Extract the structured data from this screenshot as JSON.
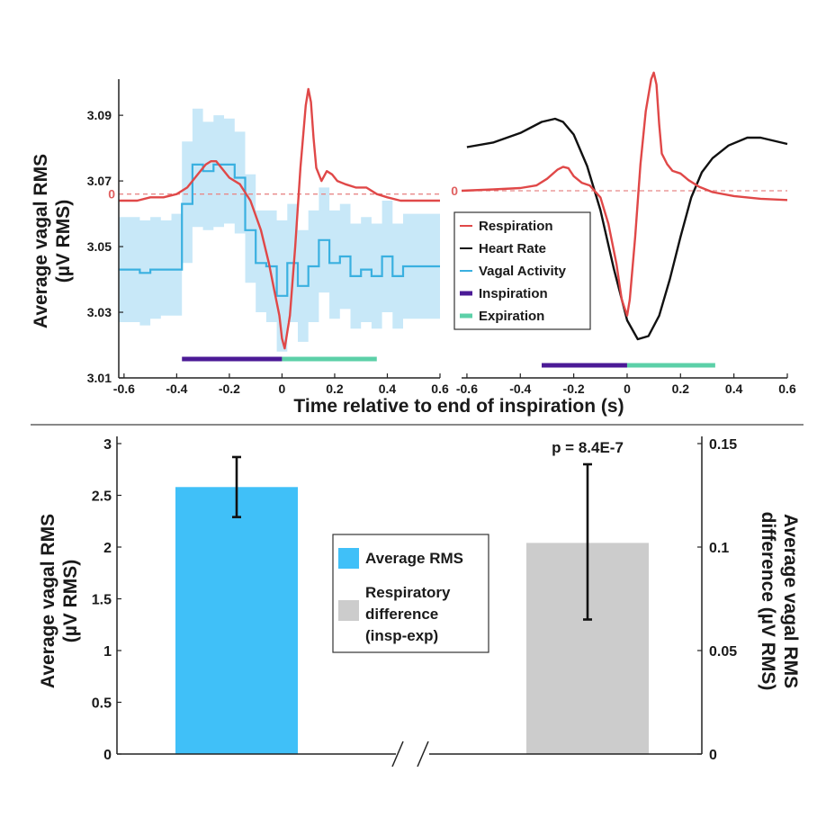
{
  "chart_data": [
    {
      "type": "line",
      "panel": "left",
      "ylabel_lines": [
        "Average vagal RMS",
        "(µV RMS)"
      ],
      "xlabel": "Time relative to end of inspiration (s)",
      "xlim": [
        -0.62,
        0.6
      ],
      "ylim": [
        3.01,
        3.101
      ],
      "yticks": [
        3.01,
        3.03,
        3.05,
        3.07,
        3.09
      ],
      "ytick_labels": [
        "3.01",
        "3.03",
        "3.05",
        "3.07",
        "3.09"
      ],
      "xticks": [
        -0.6,
        -0.4,
        -0.2,
        0,
        0.2,
        0.4,
        0.6
      ],
      "xtick_labels": [
        "-0.6",
        "-0.4",
        "-0.2",
        "0",
        "0.2",
        "0.4",
        "0.6"
      ],
      "zero_label": "0",
      "respiration_zero_level": 3.066,
      "colors": {
        "respiration": "#e04848",
        "vagal": "#3ab0e0",
        "band": "#c8e8f8",
        "inspiration": "#4b1a96",
        "expiration": "#5cd0a8"
      },
      "vagal_step": {
        "x": [
          -0.62,
          -0.58,
          -0.54,
          -0.5,
          -0.46,
          -0.42,
          -0.38,
          -0.34,
          -0.3,
          -0.26,
          -0.22,
          -0.18,
          -0.14,
          -0.1,
          -0.06,
          -0.02,
          0.02,
          0.06,
          0.1,
          0.14,
          0.18,
          0.22,
          0.26,
          0.3,
          0.34,
          0.38,
          0.42,
          0.46,
          0.5,
          0.54,
          0.58,
          0.6
        ],
        "y": [
          3.043,
          3.043,
          3.042,
          3.043,
          3.043,
          3.043,
          3.063,
          3.075,
          3.073,
          3.075,
          3.075,
          3.071,
          3.055,
          3.045,
          3.044,
          3.035,
          3.045,
          3.038,
          3.044,
          3.052,
          3.045,
          3.047,
          3.041,
          3.043,
          3.041,
          3.047,
          3.041,
          3.044,
          3.044,
          3.044,
          3.044,
          3.044
        ],
        "upper": [
          3.059,
          3.059,
          3.058,
          3.059,
          3.058,
          3.06,
          3.082,
          3.092,
          3.088,
          3.09,
          3.089,
          3.085,
          3.072,
          3.061,
          3.061,
          3.058,
          3.063,
          3.055,
          3.061,
          3.068,
          3.061,
          3.063,
          3.057,
          3.059,
          3.057,
          3.064,
          3.057,
          3.06,
          3.06,
          3.06,
          3.06,
          3.06
        ],
        "lower": [
          3.027,
          3.027,
          3.026,
          3.028,
          3.029,
          3.029,
          3.045,
          3.056,
          3.055,
          3.056,
          3.057,
          3.054,
          3.039,
          3.03,
          3.027,
          3.018,
          3.027,
          3.021,
          3.027,
          3.036,
          3.028,
          3.031,
          3.025,
          3.027,
          3.025,
          3.03,
          3.025,
          3.028,
          3.028,
          3.028,
          3.028,
          3.028
        ]
      },
      "respiration": {
        "x": [
          -0.62,
          -0.55,
          -0.5,
          -0.45,
          -0.4,
          -0.36,
          -0.32,
          -0.29,
          -0.27,
          -0.25,
          -0.23,
          -0.2,
          -0.16,
          -0.12,
          -0.08,
          -0.05,
          -0.03,
          -0.01,
          0.0,
          0.01,
          0.03,
          0.05,
          0.07,
          0.09,
          0.1,
          0.11,
          0.12,
          0.13,
          0.15,
          0.17,
          0.19,
          0.21,
          0.24,
          0.28,
          0.32,
          0.36,
          0.4,
          0.45,
          0.5,
          0.55,
          0.6
        ],
        "y": [
          3.064,
          3.064,
          3.065,
          3.065,
          3.066,
          3.068,
          3.072,
          3.075,
          3.076,
          3.076,
          3.074,
          3.071,
          3.069,
          3.064,
          3.055,
          3.045,
          3.037,
          3.029,
          3.022,
          3.019,
          3.029,
          3.05,
          3.074,
          3.093,
          3.098,
          3.094,
          3.083,
          3.074,
          3.07,
          3.073,
          3.072,
          3.07,
          3.069,
          3.068,
          3.068,
          3.066,
          3.065,
          3.064,
          3.064,
          3.064,
          3.064
        ]
      },
      "inspiration_bar": [
        -0.38,
        0.0
      ],
      "expiration_bar": [
        0.0,
        0.36
      ]
    },
    {
      "type": "line",
      "panel": "right",
      "xlim": [
        -0.62,
        0.6
      ],
      "xticks": [
        -0.6,
        -0.4,
        -0.2,
        0,
        0.2,
        0.4,
        0.6
      ],
      "xtick_labels": [
        "-0.6",
        "-0.4",
        "-0.2",
        "0",
        "0.2",
        "0.4",
        "0.6"
      ],
      "zero_label": "0",
      "heart_rate": {
        "x": [
          -0.6,
          -0.5,
          -0.4,
          -0.32,
          -0.27,
          -0.24,
          -0.2,
          -0.15,
          -0.1,
          -0.05,
          0.0,
          0.04,
          0.08,
          0.12,
          0.16,
          0.2,
          0.24,
          0.28,
          0.32,
          0.38,
          0.45,
          0.5,
          0.55,
          0.6
        ],
        "y": [
          0.22,
          0.25,
          0.31,
          0.38,
          0.4,
          0.38,
          0.3,
          0.1,
          -0.18,
          -0.55,
          -0.88,
          -1.0,
          -0.98,
          -0.85,
          -0.62,
          -0.35,
          -0.1,
          0.06,
          0.15,
          0.23,
          0.28,
          0.28,
          0.26,
          0.24
        ]
      },
      "respiration": {
        "x": [
          -0.62,
          -0.5,
          -0.4,
          -0.34,
          -0.3,
          -0.26,
          -0.24,
          -0.22,
          -0.2,
          -0.17,
          -0.14,
          -0.1,
          -0.07,
          -0.04,
          -0.02,
          0.0,
          0.01,
          0.03,
          0.05,
          0.07,
          0.09,
          0.1,
          0.11,
          0.12,
          0.13,
          0.15,
          0.17,
          0.2,
          0.23,
          0.27,
          0.32,
          0.4,
          0.5,
          0.6
        ],
        "y": [
          0.0,
          0.01,
          0.02,
          0.04,
          0.09,
          0.16,
          0.18,
          0.17,
          0.11,
          0.06,
          0.04,
          -0.05,
          -0.25,
          -0.55,
          -0.82,
          -0.94,
          -0.82,
          -0.35,
          0.2,
          0.6,
          0.84,
          0.89,
          0.8,
          0.5,
          0.28,
          0.2,
          0.15,
          0.13,
          0.08,
          0.03,
          -0.01,
          -0.04,
          -0.06,
          -0.07
        ]
      },
      "inspiration_bar": [
        -0.32,
        0.0
      ],
      "expiration_bar": [
        0.0,
        0.33
      ],
      "legend": [
        "Respiration",
        "Heart Rate",
        "Vagal Activity",
        "Inspiration",
        "Expiration"
      ]
    },
    {
      "type": "bar",
      "panel": "bottom",
      "left_ylabel_lines": [
        "Average vagal RMS",
        "(µV RMS)"
      ],
      "right_ylabel_lines": [
        "Average vagal RMS",
        "difference (µV RMS)"
      ],
      "left_ylim": [
        0,
        3
      ],
      "left_yticks": [
        0,
        0.5,
        1,
        1.5,
        2,
        2.5,
        3
      ],
      "left_ytick_labels": [
        "0",
        "0.5",
        "1",
        "1.5",
        "2",
        "2.5",
        "3"
      ],
      "right_ylim": [
        0,
        0.15
      ],
      "right_yticks": [
        0,
        0.05,
        0.1,
        0.15
      ],
      "right_ytick_labels": [
        "0",
        "0.05",
        "0.1",
        "0.15"
      ],
      "bars": [
        {
          "name": "Average RMS",
          "axis": "left",
          "value": 2.58,
          "err_low": 2.29,
          "err_high": 2.87,
          "color": "#40c0f8"
        },
        {
          "name": "Respiratory difference (insp-exp)",
          "axis": "right",
          "value": 0.102,
          "err_low": 0.065,
          "err_high": 0.14,
          "color": "#cccccc"
        }
      ],
      "annotation": "p = 8.4E-7",
      "legend": [
        {
          "lines": [
            "Average RMS"
          ],
          "color": "#40c0f8"
        },
        {
          "lines": [
            "Respiratory",
            "difference",
            "(insp-exp)"
          ],
          "color": "#cccccc"
        }
      ]
    }
  ]
}
